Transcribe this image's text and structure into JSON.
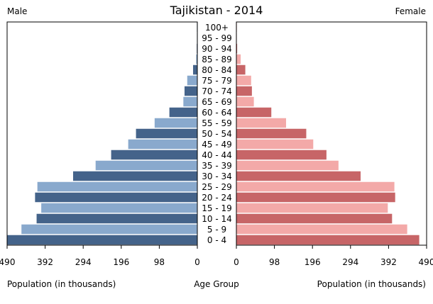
{
  "chart_data": {
    "type": "bar",
    "title": "Tajikistan - 2014",
    "left_label": "Male",
    "right_label": "Female",
    "xlabel_left": "Population (in thousands)",
    "xlabel_center": "Age Group",
    "xlabel_right": "Population (in thousands)",
    "xlim": [
      0,
      490
    ],
    "x_ticks": [
      490,
      392,
      294,
      196,
      98,
      0
    ],
    "x_tick_labels": [
      "490",
      "392",
      "294",
      "196",
      "98",
      "0"
    ],
    "categories": [
      "100+",
      "95 - 99",
      "90 - 94",
      "85 - 89",
      "80 - 84",
      "75 - 79",
      "70 - 74",
      "65 - 69",
      "60 - 64",
      "55 - 59",
      "50 - 54",
      "45 - 49",
      "40 - 44",
      "35 - 39",
      "30 - 34",
      "25 - 29",
      "20 - 24",
      "15 - 19",
      "10 - 14",
      "5 - 9",
      "0 - 4"
    ],
    "series": [
      {
        "name": "Male",
        "values": [
          0.5,
          0.8,
          1.5,
          3,
          11,
          26,
          33,
          36,
          72,
          110,
          158,
          178,
          222,
          262,
          320,
          412,
          418,
          402,
          414,
          453,
          490
        ]
      },
      {
        "name": "Female",
        "values": [
          0.3,
          0.8,
          2,
          11,
          23,
          38,
          40,
          45,
          90,
          128,
          180,
          198,
          232,
          263,
          320,
          407,
          409,
          390,
          401,
          440,
          471
        ]
      }
    ],
    "colors": {
      "male_dark": "#44638a",
      "male_light": "#89a9cd",
      "female_dark": "#c76567",
      "female_light": "#f3a9a8",
      "frame": "#000000"
    },
    "grid": false,
    "legend": "none"
  }
}
